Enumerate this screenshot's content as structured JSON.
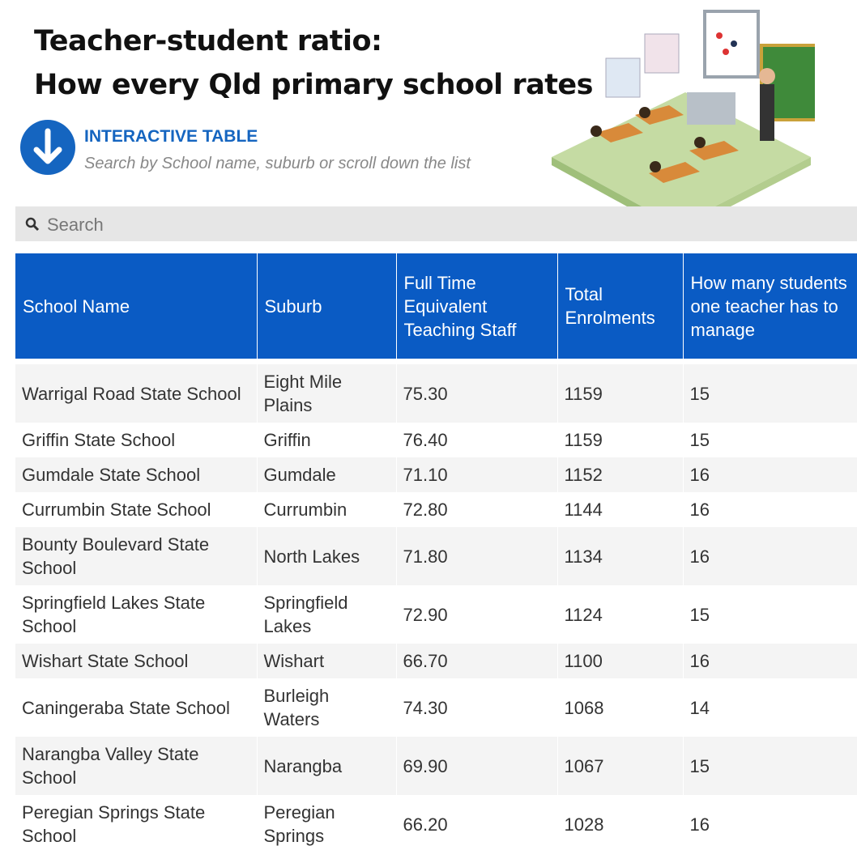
{
  "header": {
    "title_lines": [
      "Teacher-student ratio:",
      "How every Qld primary school rates"
    ],
    "label": "INTERACTIVE TABLE",
    "subtitle": "Search by School name, suburb or scroll down the list"
  },
  "search": {
    "placeholder": "Search"
  },
  "table": {
    "columns": [
      "School Name",
      "Suburb",
      "Full Time Equivalent Teaching Staff",
      "Total Enrolments",
      "How many students one teacher has to manage"
    ],
    "rows": [
      [
        "Warrigal Road State School",
        "Eight Mile Plains",
        "75.30",
        "1159",
        "15"
      ],
      [
        "Griffin State School",
        "Griffin",
        "76.40",
        "1159",
        "15"
      ],
      [
        "Gumdale State School",
        "Gumdale",
        "71.10",
        "1152",
        "16"
      ],
      [
        "Currumbin State School",
        "Currumbin",
        "72.80",
        "1144",
        "16"
      ],
      [
        "Bounty Boulevard State School",
        "North Lakes",
        "71.80",
        "1134",
        "16"
      ],
      [
        "Springfield Lakes State School",
        "Springfield Lakes",
        "72.90",
        "1124",
        "15"
      ],
      [
        "Wishart State School",
        "Wishart",
        "66.70",
        "1100",
        "16"
      ],
      [
        "Caningeraba State School",
        "Burleigh Waters",
        "74.30",
        "1068",
        "14"
      ],
      [
        "Narangba Valley State School",
        "Narangba",
        "69.90",
        "1067",
        "15"
      ],
      [
        "Peregian Springs State School",
        "Peregian Springs",
        "66.20",
        "1028",
        "16"
      ]
    ]
  }
}
